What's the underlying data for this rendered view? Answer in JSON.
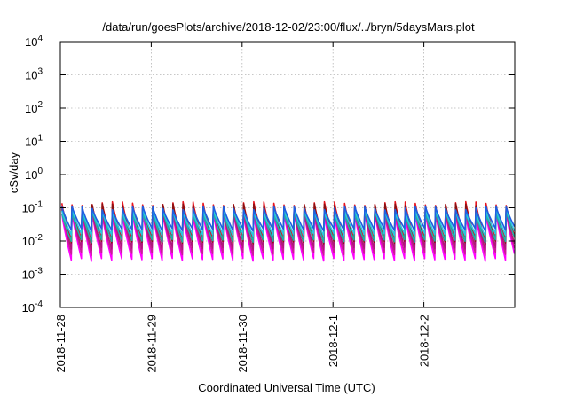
{
  "chart_data": {
    "type": "line",
    "title": "/data/run/goesPlots/archive/2018-12-02/23:00/flux/../bryn/5daysMars.plot",
    "xlabel": "Coordinated Universal Time (UTC)",
    "ylabel": "cSv/day",
    "yscale": "log",
    "ylim": [
      0.0001,
      10000
    ],
    "yticks": [
      {
        "base": "10",
        "exp": "-4"
      },
      {
        "base": "10",
        "exp": "-3"
      },
      {
        "base": "10",
        "exp": "-2"
      },
      {
        "base": "10",
        "exp": "-1"
      },
      {
        "base": "10",
        "exp": "0"
      },
      {
        "base": "10",
        "exp": "1"
      },
      {
        "base": "10",
        "exp": "2"
      },
      {
        "base": "10",
        "exp": "3"
      },
      {
        "base": "10",
        "exp": "4"
      }
    ],
    "x_tick_labels": [
      "2018-11-28",
      "2018-11-29",
      "2018-11-30",
      "2018-12-1",
      "2018-12-2"
    ],
    "xlim_days": [
      0,
      5
    ],
    "grid": true,
    "legend": "none",
    "cycles_per_day": 9,
    "series": [
      {
        "color": "#ff00ff",
        "peak": 0.075,
        "trough": 0.003
      },
      {
        "color": "#cc1a99",
        "peak": 0.09,
        "trough": 0.0045
      },
      {
        "color": "#b0177a",
        "peak": 0.11,
        "trough": 0.0065
      },
      {
        "color": "#e8141e",
        "peak": 0.15,
        "trough": 0.012
      },
      {
        "color": "#8a1212",
        "peak": 0.13,
        "trough": 0.01
      },
      {
        "color": "#1fb0a8",
        "peak": 0.085,
        "trough": 0.011
      },
      {
        "color": "#26c8e0",
        "peak": 0.095,
        "trough": 0.017
      },
      {
        "color": "#1f5fe0",
        "peak": 0.11,
        "trough": 0.024
      }
    ]
  }
}
